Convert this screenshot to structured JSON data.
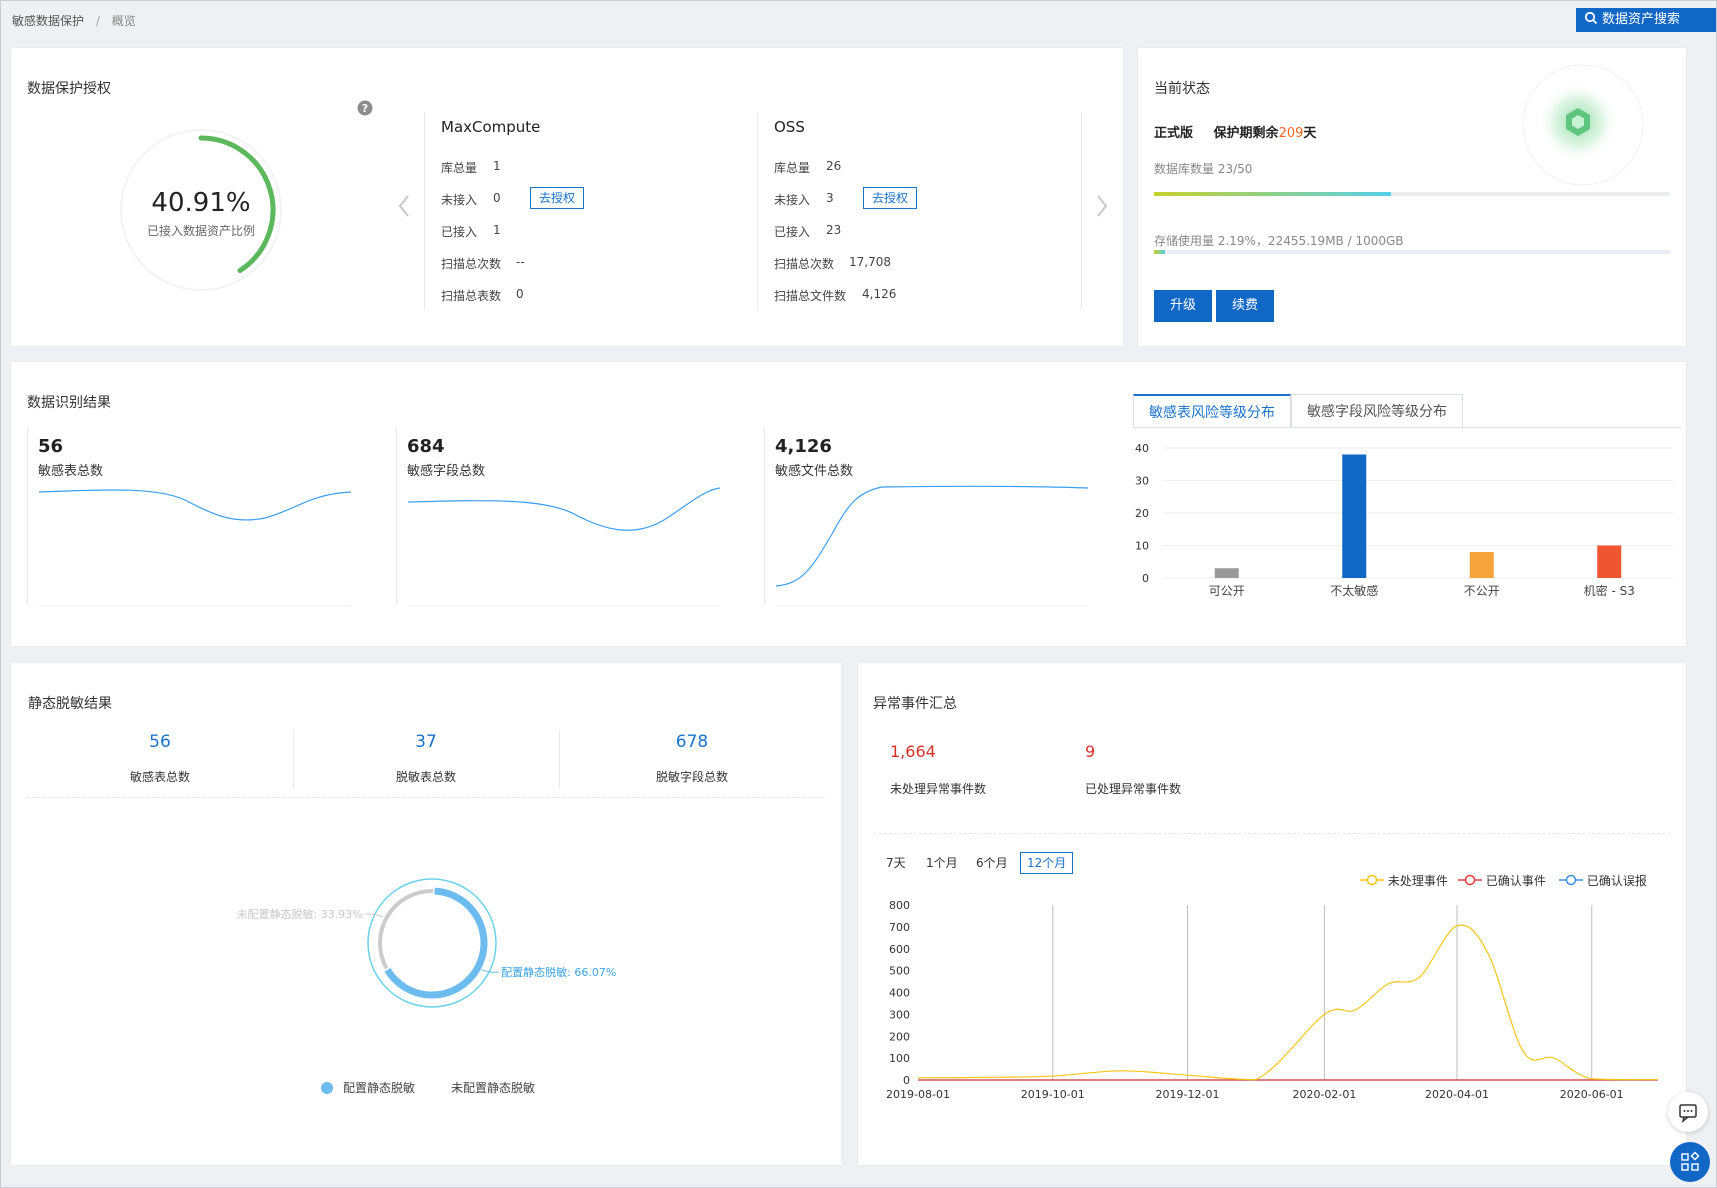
{
  "breadcrumb": {
    "root": "敏感数据保护",
    "separator": "/",
    "current": "概览"
  },
  "header": {
    "search_button": "数据资产搜索"
  },
  "auth_card": {
    "title": "数据保护授权",
    "percent": "40.91%",
    "percent_value": 0.4091,
    "percent_label": "已接入数据资产比例",
    "sources": [
      {
        "name": "MaxCompute",
        "rows": [
          {
            "label": "库总量",
            "value": "1"
          },
          {
            "label": "未接入",
            "value": "0",
            "action": "去授权"
          },
          {
            "label": "已接入",
            "value": "1"
          },
          {
            "label": "扫描总次数",
            "value": "--"
          },
          {
            "label": "扫描总表数",
            "value": "0"
          }
        ]
      },
      {
        "name": "OSS",
        "rows": [
          {
            "label": "库总量",
            "value": "26"
          },
          {
            "label": "未接入",
            "value": "3",
            "action": "去授权"
          },
          {
            "label": "已接入",
            "value": "23"
          },
          {
            "label": "扫描总次数",
            "value": "17,708"
          },
          {
            "label": "扫描总文件数",
            "value": "4,126"
          }
        ]
      }
    ]
  },
  "status_card": {
    "title": "当前状态",
    "edition": "正式版",
    "remain_prefix": "保护期剩余",
    "remain_days": "209",
    "remain_suffix": "天",
    "db_label": "数据库数量 23/50",
    "db_fraction": 0.46,
    "storage_label": "存储使用量 2.19%，22455.19MB / 1000GB",
    "storage_fraction": 0.0219,
    "upgrade": "升级",
    "renew": "续费"
  },
  "recognition_card": {
    "title": "数据识别结果",
    "kpis": [
      {
        "value": "56",
        "label": "敏感表总数"
      },
      {
        "value": "684",
        "label": "敏感字段总数"
      },
      {
        "value": "4,126",
        "label": "敏感文件总数"
      }
    ],
    "tabs": [
      "敏感表风险等级分布",
      "敏感字段风险等级分布"
    ]
  },
  "desens_card": {
    "title": "静态脱敏结果",
    "stats": [
      {
        "value": "56",
        "label": "敏感表总数"
      },
      {
        "value": "37",
        "label": "脱敏表总数"
      },
      {
        "value": "678",
        "label": "脱敏字段总数"
      }
    ],
    "legend": [
      "配置静态脱敏",
      "未配置静态脱敏"
    ],
    "colors": {
      "configured": "#6cbcf0",
      "unconfigured": "#cccccc"
    }
  },
  "events_card": {
    "title": "异常事件汇总",
    "unhandled_value": "1,664",
    "unhandled_label": "未处理异常事件数",
    "handled_value": "9",
    "handled_label": "已处理异常事件数",
    "ranges": [
      "7天",
      "1个月",
      "6个月",
      "12个月"
    ],
    "active_range": "12个月",
    "legend": [
      "未处理事件",
      "已确认事件",
      "已确认误报"
    ],
    "colors": {
      "unhandled": "#f5c518",
      "confirmed": "#e8413a",
      "false_positive": "#3a8ee6"
    }
  },
  "chart_data": [
    {
      "type": "bar",
      "categories": [
        "可公开",
        "不太敏感",
        "不公开",
        "机密 - S3"
      ],
      "values": [
        3,
        38,
        8,
        10
      ],
      "colors": [
        "#999999",
        "#1167c5",
        "#f6a43c",
        "#ee5530"
      ],
      "ylim": [
        0,
        40
      ],
      "yticks": [
        0,
        10,
        20,
        30,
        40
      ]
    },
    {
      "type": "pie",
      "slices": [
        {
          "name": "配置静态脱敏",
          "label": "配置静态脱敏: 66.07%",
          "value": 66.07
        },
        {
          "name": "未配置静态脱敏",
          "label": "未配置静态脱敏: 33.93%",
          "value": 33.93
        }
      ]
    },
    {
      "type": "line",
      "x": [
        "2019-08-01",
        "2019-09-01",
        "2019-10-01",
        "2019-11-01",
        "2019-12-01",
        "2020-01-01",
        "2020-02-01",
        "2020-02-15",
        "2020-03-01",
        "2020-03-15",
        "2020-04-01",
        "2020-04-15",
        "2020-05-01",
        "2020-05-15",
        "2020-06-01",
        "2020-07-01"
      ],
      "xticks": [
        "2019-08-01",
        "2019-10-01",
        "2019-12-01",
        "2020-02-01",
        "2020-04-01",
        "2020-06-01"
      ],
      "ylim": [
        0,
        800
      ],
      "yticks": [
        0,
        100,
        200,
        300,
        400,
        500,
        600,
        700,
        800
      ],
      "series": [
        {
          "name": "未处理事件",
          "values": [
            10,
            12,
            18,
            42,
            22,
            2,
            300,
            320,
            440,
            470,
            705,
            580,
            130,
            100,
            5,
            2
          ]
        },
        {
          "name": "已确认事件",
          "values": [
            0,
            0,
            0,
            0,
            0,
            0,
            0,
            0,
            0,
            0,
            0,
            0,
            0,
            0,
            0,
            0
          ]
        },
        {
          "name": "已确认误报",
          "values": [
            0,
            0,
            0,
            0,
            0,
            0,
            0,
            0,
            0,
            0,
            0,
            0,
            0,
            0,
            0,
            0
          ]
        }
      ]
    }
  ]
}
